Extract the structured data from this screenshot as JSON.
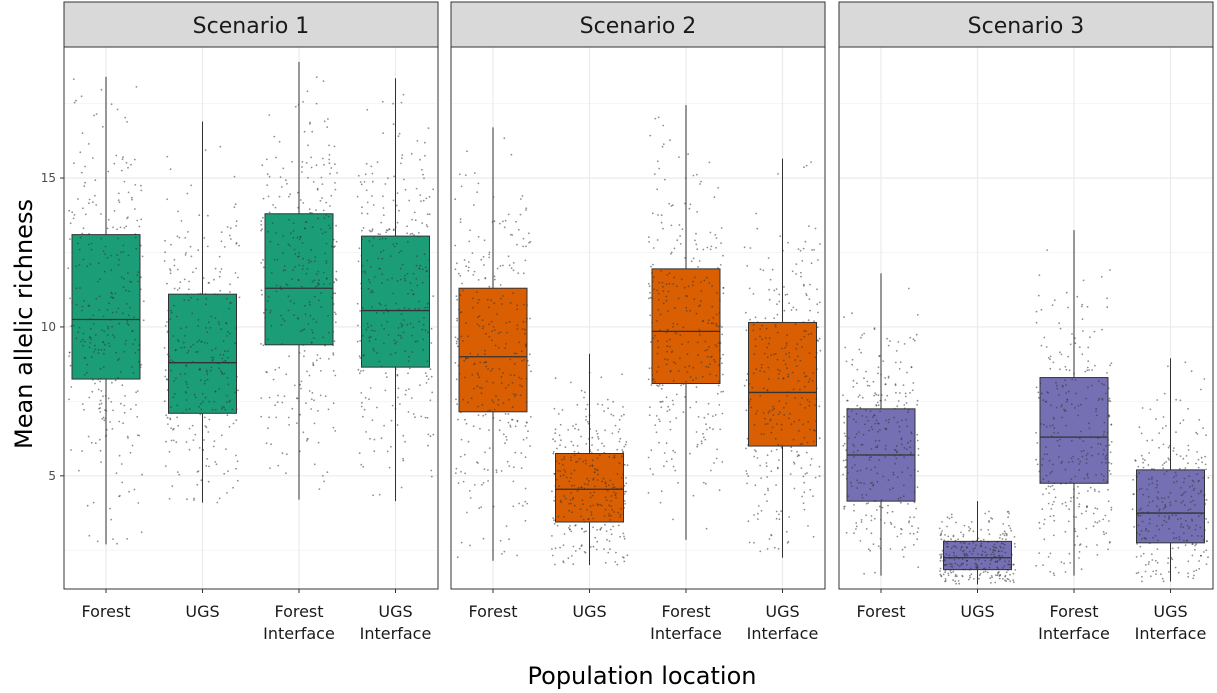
{
  "chart_data": {
    "type": "boxplot",
    "ylabel": "Mean allelic richness",
    "xlabel": "Population location",
    "ylim": [
      1.2,
      19.4
    ],
    "yticks": [
      5,
      10,
      15
    ],
    "grid": true,
    "categories": [
      {
        "line1": "Forest",
        "line2": ""
      },
      {
        "line1": "UGS",
        "line2": ""
      },
      {
        "line1": "Forest",
        "line2": "Interface"
      },
      {
        "line1": "UGS",
        "line2": "Interface"
      }
    ],
    "panels": [
      {
        "title": "Scenario 1",
        "color": "#1b9e77",
        "boxes": [
          {
            "whisker_low": 2.7,
            "q1": 8.25,
            "median": 10.25,
            "q3": 13.1,
            "whisker_high": 18.4
          },
          {
            "whisker_low": 4.1,
            "q1": 7.1,
            "median": 8.8,
            "q3": 11.1,
            "whisker_high": 16.9
          },
          {
            "whisker_low": 4.2,
            "q1": 9.4,
            "median": 11.3,
            "q3": 13.8,
            "whisker_high": 18.9
          },
          {
            "whisker_low": 4.15,
            "q1": 8.65,
            "median": 10.55,
            "q3": 13.05,
            "whisker_high": 18.35
          }
        ]
      },
      {
        "title": "Scenario 2",
        "color": "#d95f02",
        "boxes": [
          {
            "whisker_low": 2.15,
            "q1": 7.15,
            "median": 9.0,
            "q3": 11.3,
            "whisker_high": 16.7
          },
          {
            "whisker_low": 2.0,
            "q1": 3.45,
            "median": 4.55,
            "q3": 5.75,
            "whisker_high": 9.1
          },
          {
            "whisker_low": 2.85,
            "q1": 8.1,
            "median": 9.85,
            "q3": 11.95,
            "whisker_high": 17.45
          },
          {
            "whisker_low": 2.25,
            "q1": 6.0,
            "median": 7.8,
            "q3": 10.15,
            "whisker_high": 15.65
          }
        ]
      },
      {
        "title": "Scenario 3",
        "color": "#7570b3",
        "boxes": [
          {
            "whisker_low": 1.65,
            "q1": 4.15,
            "median": 5.7,
            "q3": 7.25,
            "whisker_high": 11.8
          },
          {
            "whisker_low": 1.35,
            "q1": 1.85,
            "median": 2.25,
            "q3": 2.8,
            "whisker_high": 4.15
          },
          {
            "whisker_low": 1.65,
            "q1": 4.75,
            "median": 6.3,
            "q3": 8.3,
            "whisker_high": 13.25
          },
          {
            "whisker_low": 1.45,
            "q1": 2.75,
            "median": 3.75,
            "q3": 5.2,
            "whisker_high": 8.95
          }
        ]
      }
    ]
  }
}
